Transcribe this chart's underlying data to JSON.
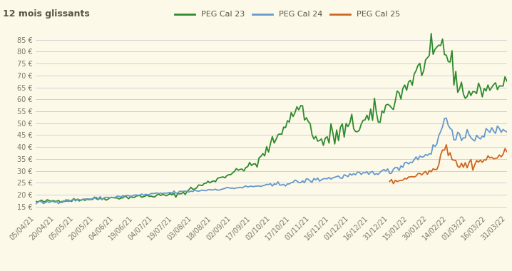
{
  "title": "12 mois glissants",
  "background_color": "#fdf9e8",
  "plot_background_color": "#fdf9e8",
  "grid_color": "#c8c8d8",
  "legend_labels": [
    "PEG Cal 23",
    "PEG Cal 24",
    "PEG Cal 25"
  ],
  "legend_colors": [
    "#2e8b2e",
    "#6699cc",
    "#cc6622"
  ],
  "ylim": [
    13,
    88
  ],
  "yticks": [
    15,
    20,
    25,
    30,
    35,
    40,
    45,
    50,
    55,
    60,
    65,
    70,
    75,
    80,
    85
  ],
  "xtick_labels": [
    "05/04/21",
    "20/04/21",
    "05/05/21",
    "20/05/21",
    "04/06/21",
    "19/06/21",
    "04/07/21",
    "19/07/21",
    "03/08/21",
    "18/08/21",
    "02/09/21",
    "17/09/21",
    "02/10/21",
    "17/10/21",
    "01/11/21",
    "16/11/21",
    "01/12/21",
    "16/12/21",
    "31/12/21",
    "15/01/22",
    "30/01/22",
    "14/02/22",
    "01/03/22",
    "16/03/22",
    "31/03/22"
  ],
  "line_width": 1.3,
  "title_fontsize": 9,
  "legend_fontsize": 8,
  "tick_fontsize": 7
}
